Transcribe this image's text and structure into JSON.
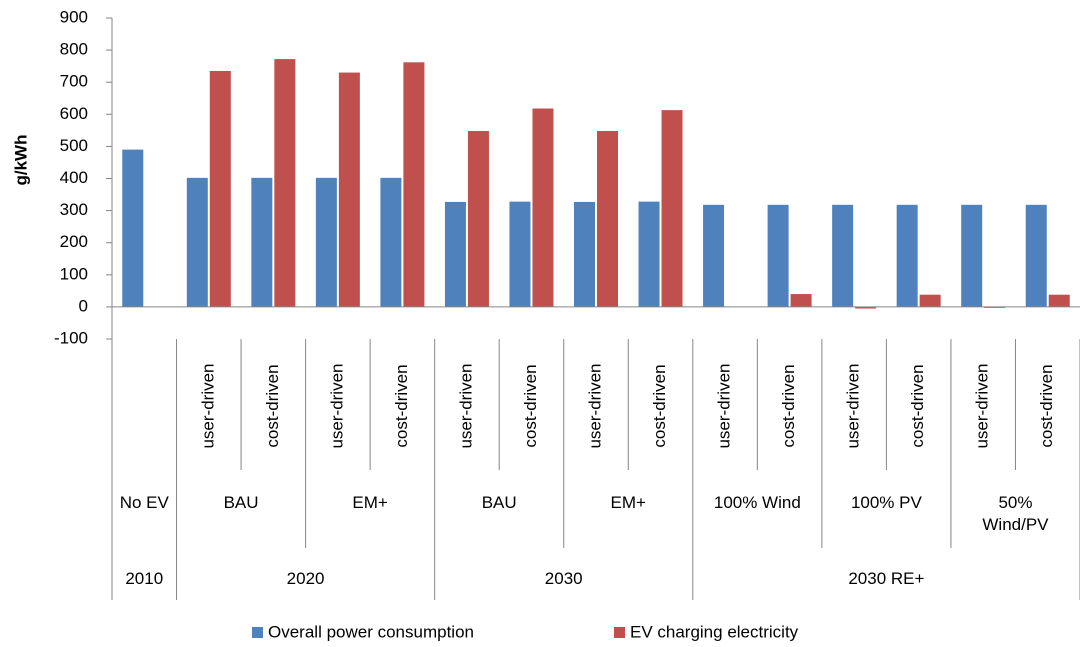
{
  "chart_data": {
    "type": "bar",
    "y_label": "g/kWh",
    "ylim": [
      -100,
      900
    ],
    "yticks": [
      -100,
      0,
      100,
      200,
      300,
      400,
      500,
      600,
      700,
      800,
      900
    ],
    "groups": [
      {
        "label": "2010",
        "subgroups": [
          {
            "label": "No EV",
            "categories": [
              null
            ]
          }
        ]
      },
      {
        "label": "2020",
        "subgroups": [
          {
            "label": "BAU",
            "categories": [
              "user-driven",
              "cost-driven"
            ]
          },
          {
            "label": "EM+",
            "categories": [
              "user-driven",
              "cost-driven"
            ]
          }
        ]
      },
      {
        "label": "2030",
        "subgroups": [
          {
            "label": "BAU",
            "categories": [
              "user-driven",
              "cost-driven"
            ]
          },
          {
            "label": "EM+",
            "categories": [
              "user-driven",
              "cost-driven"
            ]
          }
        ]
      },
      {
        "label": "2030 RE+",
        "subgroups": [
          {
            "label": "100% Wind",
            "categories": [
              "user-driven",
              "cost-driven"
            ]
          },
          {
            "label": "100% PV",
            "categories": [
              "user-driven",
              "cost-driven"
            ]
          },
          {
            "label": "50% Wind/PV",
            "categories": [
              "user-driven",
              "cost-driven"
            ]
          }
        ]
      }
    ],
    "series": [
      {
        "name": "Overall power consumption",
        "color": "#4f81bd",
        "values": [
          490,
          402,
          402,
          402,
          402,
          327,
          328,
          327,
          328,
          318,
          318,
          318,
          318,
          318,
          318
        ]
      },
      {
        "name": "EV charging electricity",
        "color": "#c0504d",
        "values": [
          null,
          735,
          772,
          730,
          762,
          548,
          618,
          548,
          613,
          0,
          40,
          -5,
          38,
          -3,
          38
        ]
      }
    ],
    "legend": "bottom"
  }
}
